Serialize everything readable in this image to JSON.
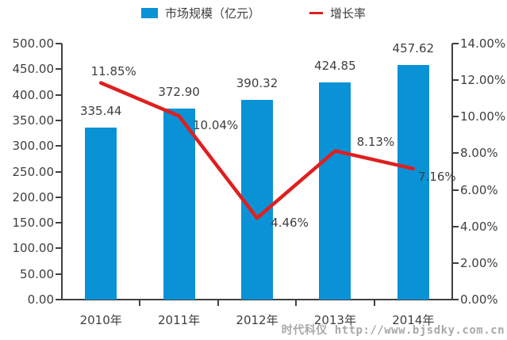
{
  "legend": {
    "bar_label": "市场规模（亿元）",
    "line_label": "增长率"
  },
  "watermark": "时代科仪 http://www.bjsdky.com.cn",
  "colors": {
    "bar": "#0a92d7",
    "line": "#df1f1f",
    "axis": "#404040",
    "text": "#3e3e3e",
    "watermark": "#a9a9a9"
  },
  "chart_data": {
    "type": "bar",
    "subtype": "bar+line dual-axis",
    "categories": [
      "2010年",
      "2011年",
      "2012年",
      "2013年",
      "2014年"
    ],
    "series": [
      {
        "name": "市场规模（亿元）",
        "type": "bar",
        "axis": "left",
        "values": [
          335.44,
          372.9,
          390.32,
          424.85,
          457.62
        ],
        "labels": [
          "335.44",
          "372.90",
          "390.32",
          "424.85",
          "457.62"
        ],
        "color": "#0a92d7"
      },
      {
        "name": "增长率",
        "type": "line",
        "axis": "right",
        "values": [
          11.85,
          10.04,
          4.46,
          8.13,
          7.16
        ],
        "labels": [
          "11.85%",
          "10.04%",
          "4.46%",
          "8.13%",
          "7.16%"
        ],
        "color": "#df1f1f"
      }
    ],
    "left_axis": {
      "min": 0,
      "max": 500,
      "step": 50,
      "tick_labels": [
        "500.00",
        "450.00",
        "400.00",
        "350.00",
        "300.00",
        "250.00",
        "200.00",
        "150.00",
        "100.00",
        "50.00",
        "0.00"
      ]
    },
    "right_axis": {
      "min": 0,
      "max": 14,
      "step": 2,
      "tick_labels": [
        "14.00%",
        "12.00%",
        "10.00%",
        "8.00%",
        "6.00%",
        "4.00%",
        "2.00%",
        "0.00%"
      ]
    },
    "title": "",
    "grid": false,
    "legend_position": "top"
  }
}
